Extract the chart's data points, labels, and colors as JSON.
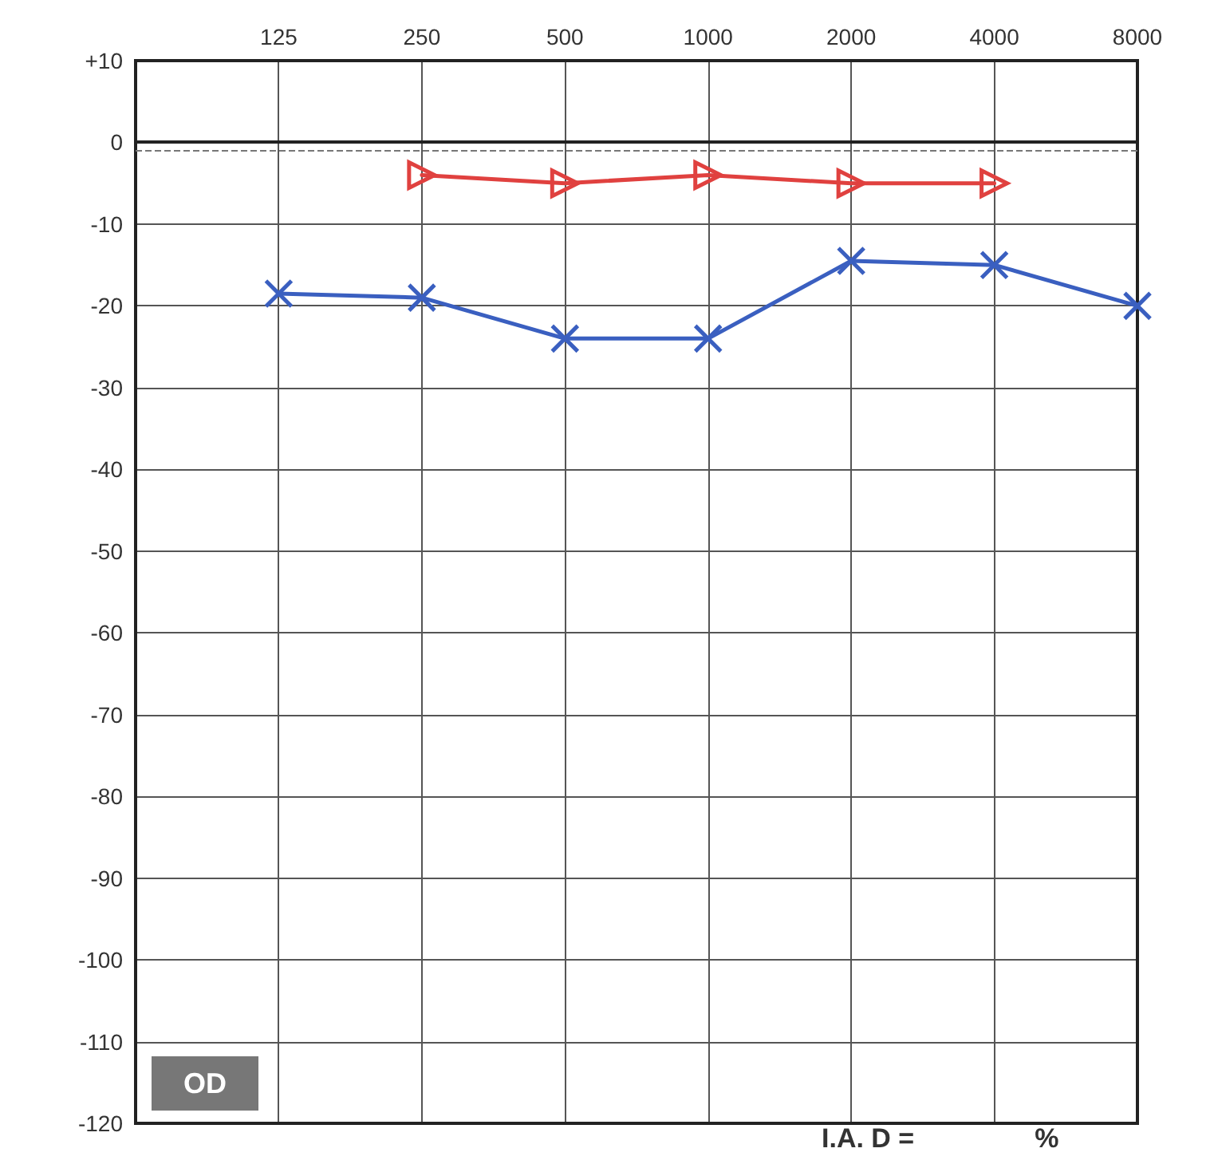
{
  "chart_data": {
    "type": "line",
    "x": [
      125,
      250,
      500,
      1000,
      2000,
      4000,
      8000
    ],
    "xlim": [
      62.5,
      8000
    ],
    "xticks": [
      125,
      250,
      500,
      1000,
      2000,
      4000,
      8000
    ],
    "log": "x",
    "ylim": [
      -120,
      10
    ],
    "yticks": [
      -120,
      -110,
      -100,
      -90,
      -80,
      -70,
      -60,
      -50,
      -40,
      -30,
      -20,
      -10,
      0,
      {
        "value": 10,
        "label": "+10"
      }
    ],
    "grid": true,
    "line_style": "solid",
    "series": [
      {
        "color": "#e0413f",
        "marker": "triangle",
        "x": [
          250,
          500,
          1000,
          2000,
          4000
        ],
        "values": [
          -4,
          -5,
          -4,
          -5,
          -5
        ]
      },
      {
        "color": "#3a5fc0",
        "marker": "cross",
        "values": [
          -18.5,
          -19,
          -24,
          -24,
          -14.5,
          -15,
          -20
        ]
      }
    ],
    "ref_lines": [
      {
        "axis": "y",
        "value": -1,
        "label": null,
        "line_style": "dashed",
        "color": "#777777"
      }
    ],
    "annotations": [
      "OD",
      "I.A. D =                %"
    ]
  }
}
